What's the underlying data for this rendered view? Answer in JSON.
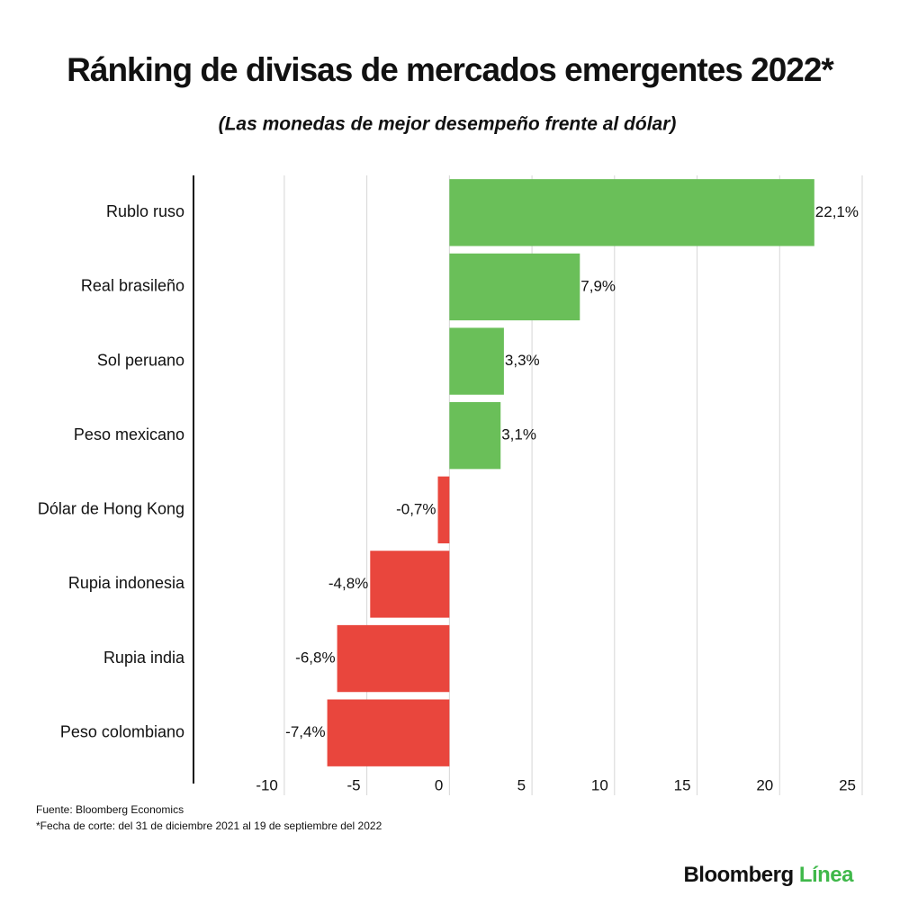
{
  "chart_data": {
    "type": "barh",
    "title": "Ránking de divisas de mercados emergentes 2022*",
    "subtitle": "(Las monedas de mejor desempeño frente al dólar)",
    "categories": [
      "Rublo ruso",
      "Real brasileño",
      "Sol peruano",
      "Peso mexicano",
      "Dólar de Hong Kong",
      "Rupia indonesia",
      "Rupia india",
      "Peso colombiano"
    ],
    "values": [
      22.1,
      7.9,
      3.3,
      3.1,
      -0.7,
      -4.8,
      -6.8,
      -7.4
    ],
    "value_labels": [
      "22,1%",
      "7,9%",
      "3,3%",
      "3,1%",
      "-0,7%",
      "-4,8%",
      "-6,8%",
      "-7,4%"
    ],
    "positive_color": "#6abf59",
    "negative_color": "#e9463d",
    "xlim": [
      -15.5,
      25
    ],
    "xticks": [
      -10,
      -5,
      0,
      5,
      10,
      15,
      20,
      25
    ],
    "grid": true,
    "source": "Fuente: Bloomberg Economics",
    "note": "*Fecha de corte: del 31 de diciembre 2021 al 19 de septiembre del 2022"
  },
  "logo": {
    "brand": "Bloomberg",
    "product": "Línea"
  }
}
